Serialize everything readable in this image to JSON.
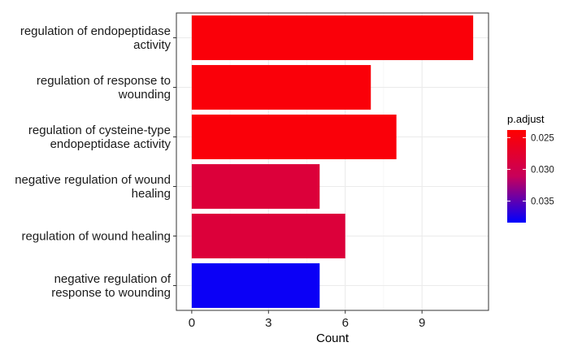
{
  "chart_data": {
    "type": "bar",
    "orientation": "horizontal",
    "categories": [
      "regulation of endopeptidase activity",
      "regulation of response to wounding",
      "regulation of cysteine-type endopeptidase activity",
      "negative regulation of wound healing",
      "regulation of wound healing",
      "negative regulation of response to wounding"
    ],
    "category_label_lines": [
      [
        "regulation of endopeptidase",
        "activity"
      ],
      [
        "regulation of response to",
        "wounding"
      ],
      [
        "regulation of cysteine-type",
        "endopeptidase activity"
      ],
      [
        "negative regulation of wound",
        "healing"
      ],
      [
        "regulation of wound healing"
      ],
      [
        "negative regulation of",
        "response to wounding"
      ]
    ],
    "values": [
      11,
      7,
      8,
      5,
      6,
      5
    ],
    "p_adjust": [
      0.0245,
      0.0245,
      0.0245,
      0.0285,
      0.0285,
      0.038
    ],
    "xlabel": "Count",
    "ylabel": "",
    "xlim": [
      -0.6,
      11.6
    ],
    "xticks": [
      0,
      3,
      6,
      9
    ],
    "grid": true,
    "legend": {
      "title": "p.adjust",
      "placement": "right",
      "ticks": [
        0.025,
        0.03,
        0.035
      ],
      "tick_labels": [
        "0.025",
        "0.030",
        "0.035"
      ],
      "range": [
        0.0238,
        0.0384
      ],
      "colors": {
        "low": "#ff0000",
        "high": "#0000ff"
      }
    }
  }
}
